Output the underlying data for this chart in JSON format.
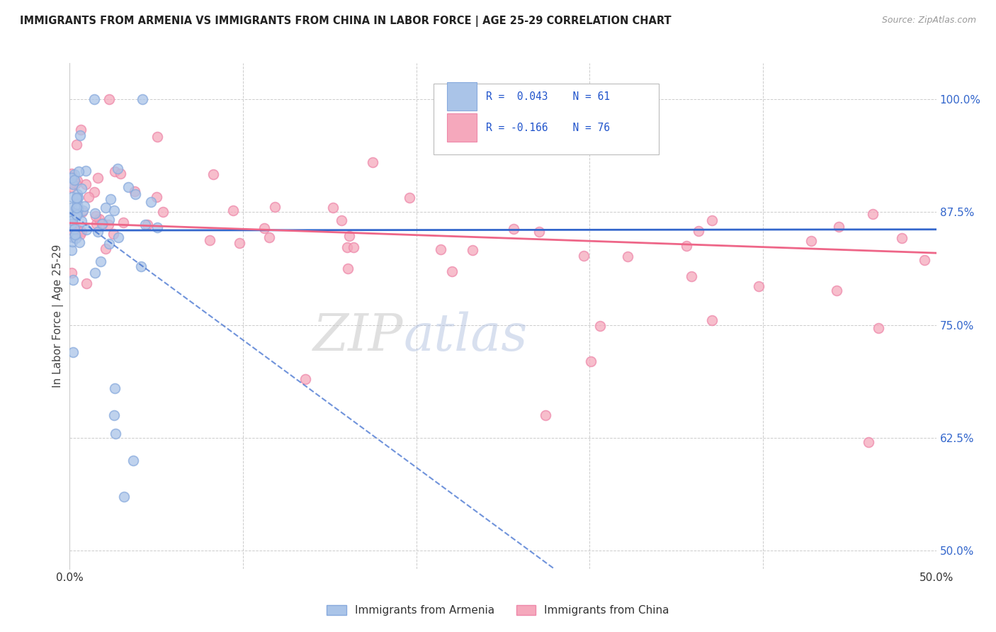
{
  "title": "IMMIGRANTS FROM ARMENIA VS IMMIGRANTS FROM CHINA IN LABOR FORCE | AGE 25-29 CORRELATION CHART",
  "source": "Source: ZipAtlas.com",
  "ylabel": "In Labor Force | Age 25-29",
  "armenia_R": 0.043,
  "armenia_N": 61,
  "china_R": -0.166,
  "china_N": 76,
  "armenia_color": "#aac4e8",
  "china_color": "#f5a8bc",
  "armenia_edge_color": "#88aadd",
  "china_edge_color": "#ee88aa",
  "armenia_line_color": "#3366cc",
  "china_line_color": "#ee6688",
  "right_label_color": "#3366cc",
  "xlim": [
    0.0,
    0.5
  ],
  "ylim": [
    0.48,
    1.04
  ],
  "yticks": [
    0.5,
    0.625,
    0.75,
    0.875,
    1.0
  ],
  "yticklabels": [
    "50.0%",
    "62.5%",
    "75.0%",
    "87.5%",
    "100.0%"
  ],
  "xticks": [
    0.0,
    0.1,
    0.2,
    0.3,
    0.4,
    0.5
  ],
  "xticklabels_show": {
    "0.0": "0.0%",
    "0.5": "50.0%"
  },
  "watermark_zip_color": "#cccccc",
  "watermark_atlas_color": "#aabbdd",
  "background_color": "#ffffff",
  "grid_color": "#cccccc",
  "legend_box_color": "#ffffff",
  "legend_border_color": "#cccccc"
}
